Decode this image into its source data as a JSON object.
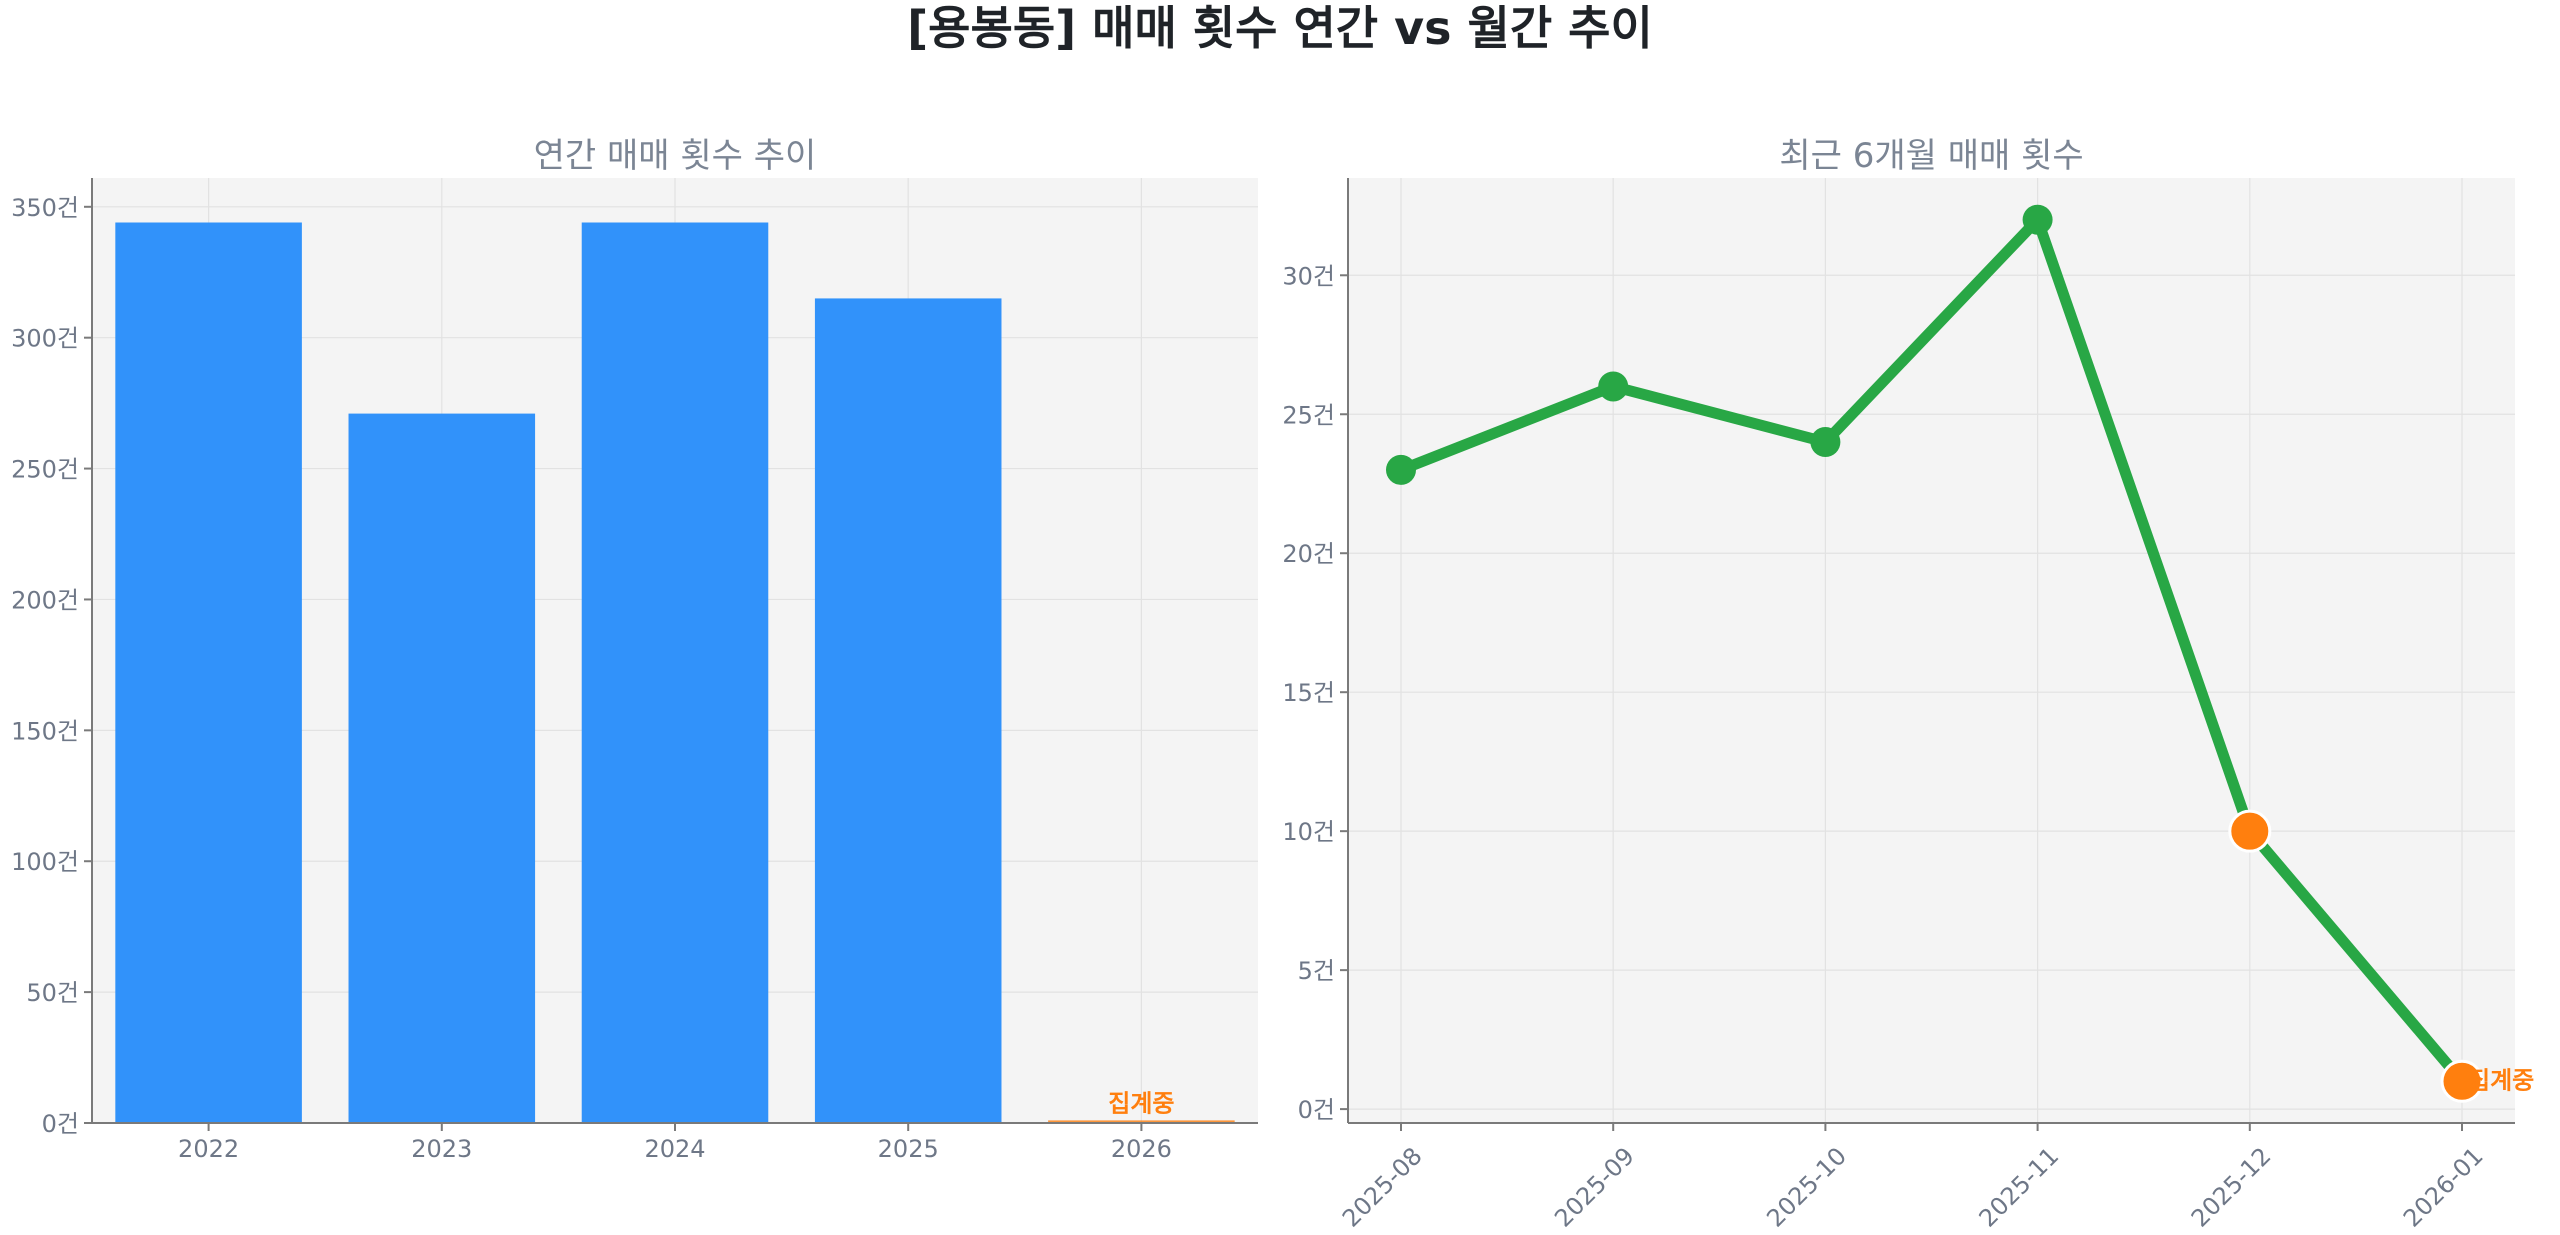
{
  "title": "[용봉동] 매매 횟수 연간 vs 월간 추이",
  "colors": {
    "bar": "#3192fa",
    "line": "#28a745",
    "highlight": "#ff7f0e",
    "plot_bg": "#f4f4f4"
  },
  "chart_data": [
    {
      "type": "bar",
      "title": "연간 매매 횟수 추이",
      "categories": [
        "2022",
        "2023",
        "2024",
        "2025",
        "2026"
      ],
      "values": [
        344,
        271,
        344,
        315,
        1
      ],
      "highlight_index": 4,
      "annotation": "집계중",
      "ylim": [
        0,
        361
      ],
      "yticks": [
        0,
        50,
        100,
        150,
        200,
        250,
        300,
        350
      ],
      "ytick_labels": [
        "0건",
        "50건",
        "100건",
        "150건",
        "200건",
        "250건",
        "300건",
        "350건"
      ],
      "grid": true,
      "xlabel": "",
      "ylabel": ""
    },
    {
      "type": "line",
      "title": "최근 6개월 매매 횟수",
      "categories": [
        "2025-08",
        "2025-09",
        "2025-10",
        "2025-11",
        "2025-12",
        "2026-01"
      ],
      "values": [
        23,
        26,
        24,
        32,
        10,
        1
      ],
      "highlight_indices": [
        4,
        5
      ],
      "annotation": "집계중",
      "annotation_index": 5,
      "ylim": [
        -0.5,
        33.5
      ],
      "yticks": [
        0,
        5,
        10,
        15,
        20,
        25,
        30
      ],
      "ytick_labels": [
        "0건",
        "5건",
        "10건",
        "15건",
        "20건",
        "25건",
        "30건"
      ],
      "grid": true,
      "xlabel": "",
      "ylabel": ""
    }
  ]
}
